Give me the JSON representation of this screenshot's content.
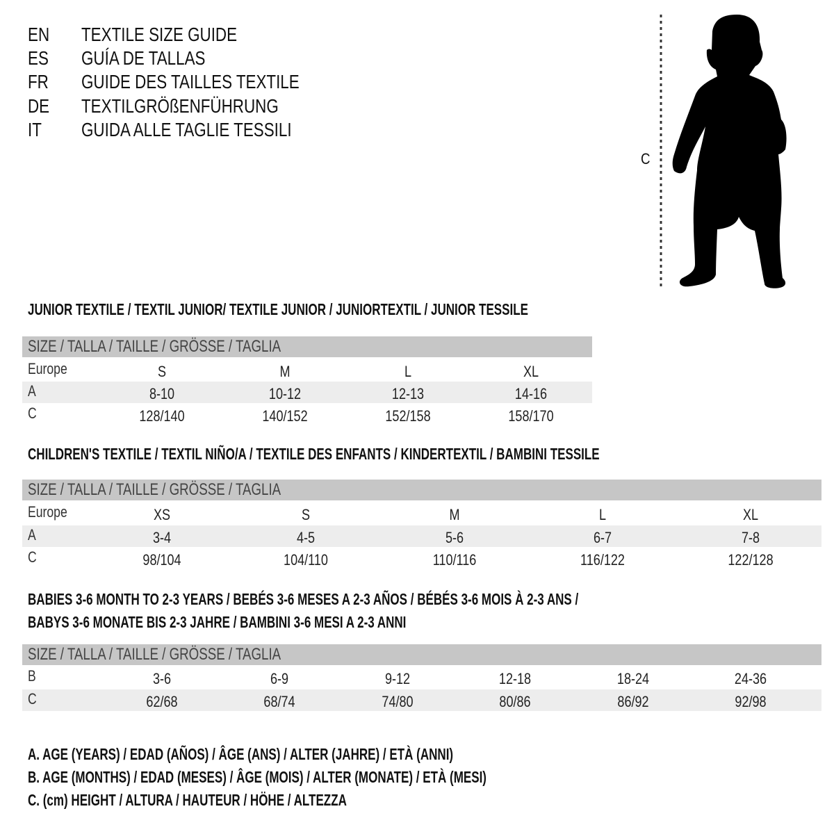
{
  "header": {
    "languages": [
      {
        "code": "EN",
        "title": "TEXTILE SIZE GUIDE"
      },
      {
        "code": "ES",
        "title": "GUÍA DE TALLAS"
      },
      {
        "code": "FR",
        "title": "GUIDE DES TAILLES TEXTILE"
      },
      {
        "code": "DE",
        "title": "TEXTILGRÖßENFÜHRUNG"
      },
      {
        "code": "IT",
        "title": "GUIDA ALLE TAGLIE TESSILI"
      }
    ]
  },
  "figure": {
    "icon": "child-silhouette",
    "measure_label": "C"
  },
  "tables": [
    {
      "title": "JUNIOR TEXTILE / TEXTIL JUNIOR/ TEXTILE JUNIOR / JUNIORTEXTIL / JUNIOR TESSILE",
      "header": "SIZE / TALLA / TAILLE / GRÖSSE / TAGLIA",
      "rows": [
        {
          "label": "Europe",
          "values": [
            "S",
            "M",
            "L",
            "XL"
          ]
        },
        {
          "label": "A",
          "values": [
            "8-10",
            "10-12",
            "12-13",
            "14-16"
          ]
        },
        {
          "label": "C",
          "values": [
            "128/140",
            "140/152",
            "152/158",
            "158/170"
          ]
        }
      ]
    },
    {
      "title": "CHILDREN'S TEXTILE / TEXTIL NIÑO/A / TEXTILE DES ENFANTS / KINDERTEXTIL / BAMBINI TESSILE",
      "header": "SIZE / TALLA / TAILLE / GRÖSSE / TAGLIA",
      "rows": [
        {
          "label": "Europe",
          "values": [
            "XS",
            "S",
            "M",
            "L",
            "XL"
          ]
        },
        {
          "label": "A",
          "values": [
            "3-4",
            "4-5",
            "5-6",
            "6-7",
            "7-8"
          ]
        },
        {
          "label": "C",
          "values": [
            "98/104",
            "104/110",
            "110/116",
            "116/122",
            "122/128"
          ]
        }
      ]
    },
    {
      "title": "BABIES 3-6 MONTH TO 2-3 YEARS / BEBÉS 3-6 MESES A 2-3 AÑOS / BÉBÉS 3-6 MOIS À 2-3 ANS /",
      "title2": "BABYS 3-6 MONATE BIS 2-3 JAHRE / BAMBINI 3-6 MESI A 2-3 ANNI",
      "header": "SIZE / TALLA / TAILLE / GRÖSSE / TAGLIA",
      "rows": [
        {
          "label": "B",
          "values": [
            "3-6",
            "6-9",
            "9-12",
            "12-18",
            "18-24",
            "24-36"
          ]
        },
        {
          "label": "C",
          "values": [
            "62/68",
            "68/74",
            "74/80",
            "80/86",
            "86/92",
            "92/98"
          ]
        }
      ]
    }
  ],
  "legend": [
    "A. AGE (YEARS) / EDAD (AÑOS) / ÂGE (ANS) / ALTER (JAHRE) / ETÀ (ANNI)",
    "B. AGE (MONTHS) / EDAD (MESES) / ÂGE (MOIS) / ALTER (MONATE) / ETÀ (MESI)",
    "C. (cm) HEIGHT / ALTURA / HAUTEUR / HÖHE / ALTEZZA"
  ],
  "colors": {
    "header_band": "#c6c6c6",
    "shaded_row": "#ededed",
    "text": "#111111"
  }
}
